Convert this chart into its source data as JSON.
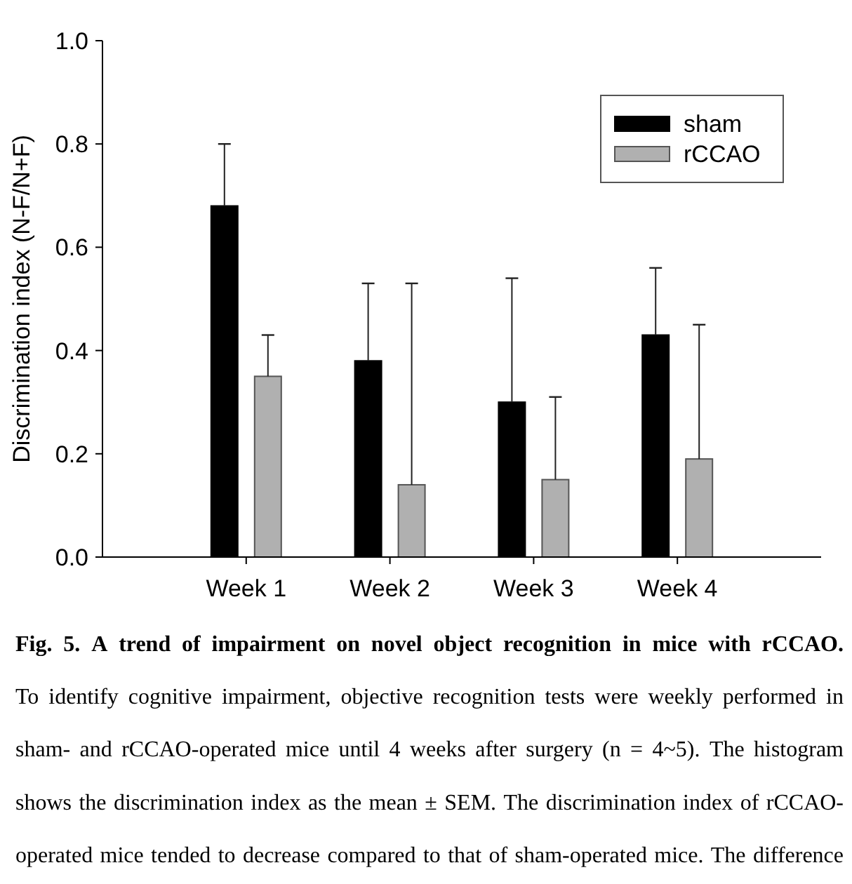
{
  "chart_data": {
    "type": "bar",
    "title": "Fig. 5. A trend of impairment on novel object recognition in mice with rCCAO.",
    "ylabel": "Discrimination index (N-F/N+F)",
    "categories": [
      "Week 1",
      "Week 2",
      "Week 3",
      "Week 4"
    ],
    "series": [
      {
        "name": "sham",
        "color": "#000000",
        "values": [
          0.68,
          0.38,
          0.3,
          0.43
        ],
        "errors": [
          0.12,
          0.15,
          0.24,
          0.13
        ]
      },
      {
        "name": "rCCAO",
        "color": "#b0b0b0",
        "values": [
          0.35,
          0.14,
          0.15,
          0.19
        ],
        "errors": [
          0.08,
          0.39,
          0.16,
          0.26
        ]
      }
    ],
    "ylim": [
      0,
      1
    ],
    "yticks": [
      {
        "value": 0,
        "label": "0.0"
      },
      0.2,
      0.4,
      0.6,
      0.8,
      {
        "value": 1,
        "label": "1.0"
      }
    ],
    "legend": "top right",
    "annotations": [
      "To identify cognitive impairment, objective recognition tests were weekly performed in sham- and rCCAO-operated mice until 4 weeks after surgery (n = 4~5). The histogram shows the discrimination index as the mean ± SEM. The discrimination index of rCCAO-operated mice tended to decrease compared to that of sham-operated mice. The difference"
    ]
  }
}
